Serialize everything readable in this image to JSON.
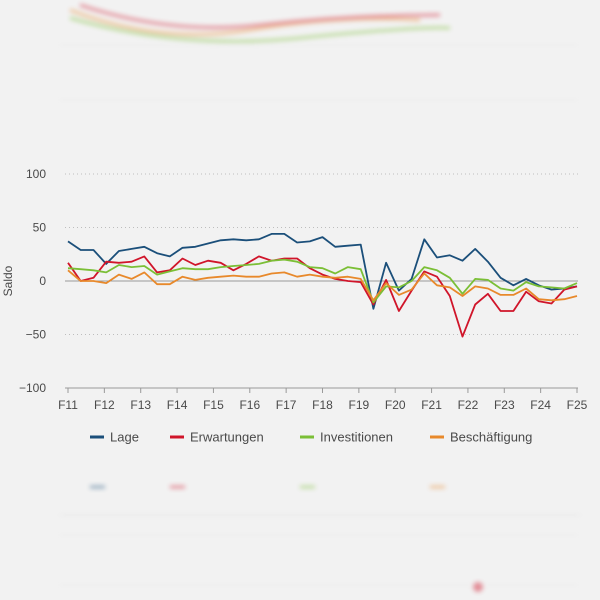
{
  "chart_data": {
    "type": "line",
    "title": "",
    "xlabel": "",
    "ylabel": "Saldo",
    "ylim": [
      -100,
      100
    ],
    "y_ticks": [
      "100",
      "50",
      "0",
      "-50",
      "-100"
    ],
    "grid": "horizontal dotted",
    "legend_position": "bottom",
    "x_tick_labels": [
      "F11",
      "F12",
      "F13",
      "F14",
      "F15",
      "F16",
      "F17",
      "F18",
      "F19",
      "F20",
      "F21",
      "F22",
      "F23",
      "F24",
      "F25"
    ],
    "series": [
      {
        "name": "Lage",
        "color": "#1b4f7a",
        "values": [
          37,
          29,
          29,
          16,
          28,
          30,
          32,
          26,
          23,
          31,
          32,
          35,
          38,
          39,
          38,
          39,
          44,
          44,
          36,
          37,
          41,
          32,
          33,
          34,
          -26,
          17,
          -9,
          2,
          39,
          22,
          24,
          19,
          30,
          18,
          3,
          -4,
          2,
          -4,
          -8,
          -7,
          -5
        ]
      },
      {
        "name": "Erwartungen",
        "color": "#d0152a",
        "values": [
          17,
          0,
          3,
          18,
          17,
          18,
          23,
          8,
          10,
          21,
          15,
          19,
          17,
          10,
          16,
          23,
          19,
          21,
          21,
          12,
          6,
          2,
          0,
          -1,
          -22,
          1,
          -28,
          -9,
          9,
          4,
          -14,
          -52,
          -22,
          -12,
          -28,
          -28,
          -10,
          -19,
          -21,
          -8,
          -5
        ]
      },
      {
        "name": "Investitionen",
        "color": "#7bbf36",
        "values": [
          12,
          11,
          10,
          8,
          15,
          13,
          14,
          6,
          9,
          12,
          11,
          11,
          13,
          14,
          15,
          16,
          19,
          20,
          18,
          13,
          12,
          7,
          13,
          11,
          -20,
          -5,
          -6,
          0,
          13,
          10,
          3,
          -12,
          2,
          1,
          -7,
          -9,
          -1,
          -5,
          -6,
          -7,
          -2
        ]
      },
      {
        "name": "Beschäftigung",
        "color": "#e8892b",
        "values": [
          10,
          0,
          0,
          -2,
          6,
          2,
          8,
          -3,
          -3,
          4,
          1,
          3,
          4,
          5,
          4,
          4,
          7,
          8,
          4,
          6,
          4,
          3,
          4,
          2,
          -18,
          -2,
          -13,
          -8,
          7,
          -4,
          -6,
          -14,
          -5,
          -7,
          -13,
          -13,
          -7,
          -17,
          -18,
          -17,
          -14
        ]
      }
    ]
  }
}
